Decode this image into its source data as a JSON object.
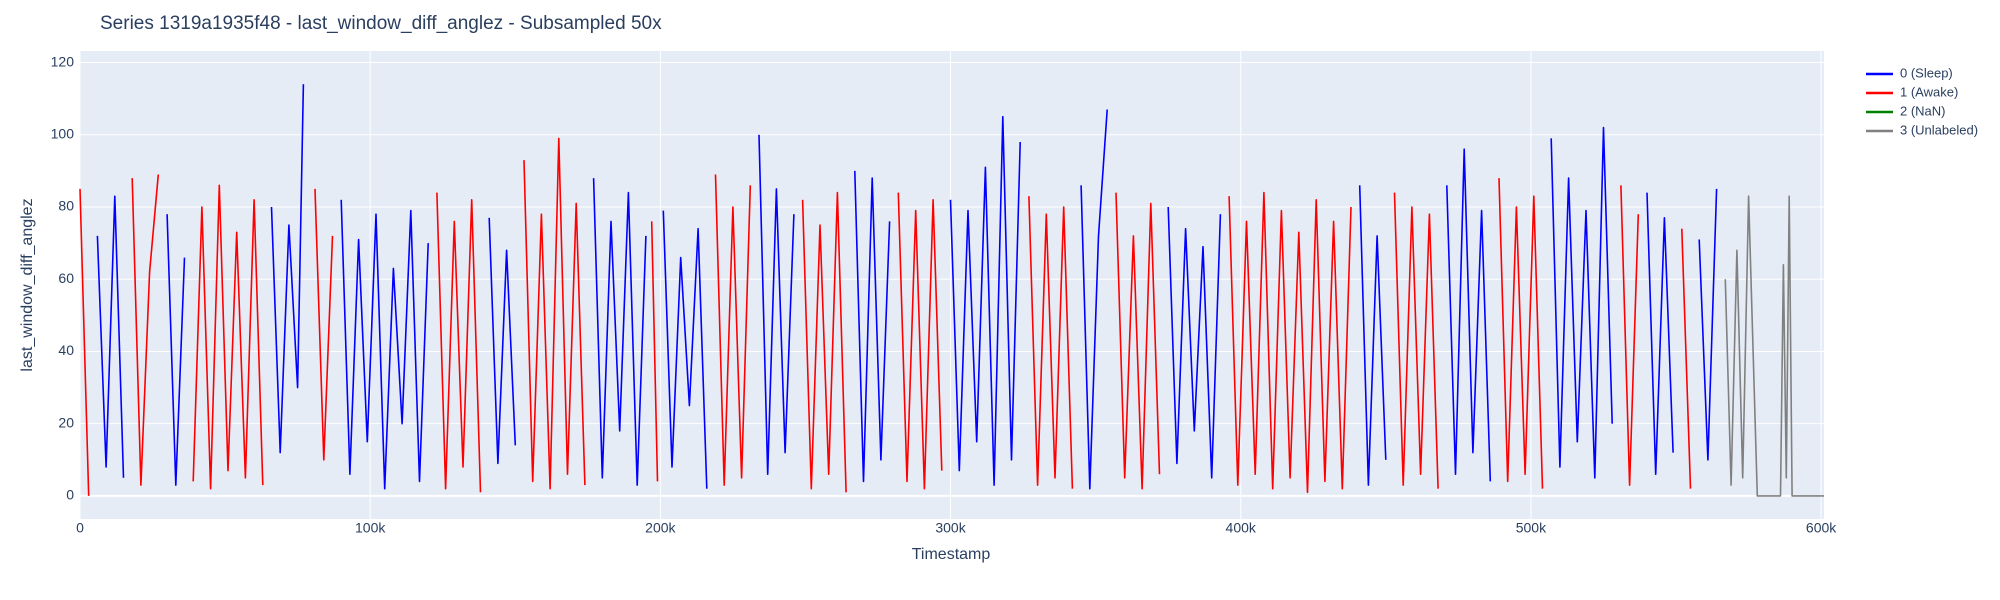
{
  "chart_data": {
    "type": "line",
    "title": "Series 1319a1935f48 - last_window_diff_anglez - Subsampled 50x",
    "x_label": "Timestamp",
    "y_label": "last_window_diff_anglez",
    "xlim": [
      0,
      601000
    ],
    "ylim": [
      -6.4,
      123.2
    ],
    "xticks": [
      0,
      {
        "value": 100000,
        "label": "100k"
      },
      {
        "value": 200000,
        "label": "200k"
      },
      {
        "value": 300000,
        "label": "300k"
      },
      {
        "value": 400000,
        "label": "400k"
      },
      {
        "value": 500000,
        "label": "500k"
      },
      {
        "value": 600000,
        "label": "600k"
      }
    ],
    "yticks": [
      0,
      20,
      40,
      60,
      80,
      100,
      120
    ],
    "grid": true,
    "legend": "right",
    "series": [
      {
        "name": "0 (Sleep)",
        "color": "#0000ff",
        "x": [
          6000,
          9000,
          12000,
          15000,
          20000,
          30000,
          33000,
          36000,
          50000,
          66000,
          69000,
          72000,
          75000,
          77000,
          85000,
          90000,
          93000,
          96000,
          99000,
          102000,
          105000,
          108000,
          111000,
          114000,
          117000,
          120000,
          130000,
          141000,
          144000,
          147000,
          150000,
          160000,
          177000,
          180000,
          183000,
          186000,
          189000,
          192000,
          195000,
          198000,
          201000,
          204000,
          207000,
          210000,
          213000,
          216000,
          225000,
          234000,
          237000,
          240000,
          243000,
          246000,
          255000,
          267000,
          270000,
          273000,
          276000,
          279000,
          290000,
          300000,
          303000,
          306000,
          309000,
          312000,
          315000,
          318000,
          321000,
          324000,
          335000,
          345000,
          348000,
          351000,
          354000,
          365000,
          375000,
          378000,
          381000,
          384000,
          387000,
          390000,
          393000,
          420000,
          441000,
          444000,
          447000,
          450000,
          460000,
          471000,
          474000,
          477000,
          480000,
          483000,
          486000,
          495000,
          507000,
          510000,
          513000,
          516000,
          519000,
          522000,
          525000,
          528000,
          535000,
          540000,
          543000,
          546000,
          549000,
          553000,
          558000,
          561000,
          564000
        ],
        "values": [
          72,
          8,
          83,
          5,
          null,
          78,
          3,
          66,
          null,
          80,
          12,
          75,
          30,
          114,
          null,
          82,
          6,
          71,
          15,
          78,
          2,
          63,
          20,
          79,
          4,
          70,
          null,
          77,
          9,
          68,
          14,
          null,
          88,
          5,
          76,
          18,
          84,
          3,
          72,
          null,
          79,
          8,
          66,
          25,
          74,
          2,
          null,
          100,
          6,
          85,
          12,
          78,
          null,
          90,
          4,
          88,
          10,
          76,
          null,
          82,
          7,
          79,
          15,
          91,
          3,
          105,
          10,
          98,
          null,
          86,
          2,
          72,
          107,
          null,
          80,
          9,
          74,
          18,
          69,
          5,
          78,
          null,
          86,
          3,
          72,
          10,
          null,
          86,
          6,
          96,
          12,
          79,
          4,
          null,
          99,
          8,
          88,
          15,
          79,
          5,
          102,
          20,
          null,
          84,
          6,
          77,
          12,
          null,
          71,
          10,
          85
        ]
      },
      {
        "name": "1 (Awake)",
        "color": "#ff0000",
        "x": [
          0,
          3000,
          10000,
          18000,
          21000,
          24000,
          27000,
          33000,
          39000,
          42000,
          45000,
          48000,
          51000,
          54000,
          57000,
          60000,
          63000,
          70000,
          81000,
          84000,
          87000,
          100000,
          123000,
          126000,
          129000,
          132000,
          135000,
          138000,
          145000,
          153000,
          156000,
          159000,
          162000,
          165000,
          168000,
          171000,
          174000,
          185000,
          197000,
          199000,
          210000,
          219000,
          222000,
          225000,
          228000,
          231000,
          240000,
          249000,
          252000,
          255000,
          258000,
          261000,
          264000,
          270000,
          282000,
          285000,
          288000,
          291000,
          294000,
          297000,
          310000,
          327000,
          330000,
          333000,
          336000,
          339000,
          342000,
          350000,
          357000,
          360000,
          363000,
          366000,
          369000,
          372000,
          385000,
          396000,
          399000,
          402000,
          405000,
          408000,
          411000,
          414000,
          417000,
          420000,
          423000,
          426000,
          429000,
          432000,
          435000,
          438000,
          445000,
          453000,
          456000,
          459000,
          462000,
          465000,
          468000,
          480000,
          489000,
          492000,
          495000,
          498000,
          501000,
          504000,
          520000,
          531000,
          534000,
          537000,
          545000,
          552000,
          555000
        ],
        "values": [
          85,
          0,
          null,
          88,
          3,
          62,
          89,
          null,
          4,
          80,
          2,
          86,
          7,
          73,
          5,
          82,
          3,
          null,
          85,
          10,
          72,
          null,
          84,
          2,
          76,
          8,
          82,
          1,
          null,
          93,
          4,
          78,
          2,
          99,
          6,
          81,
          3,
          null,
          76,
          4,
          null,
          89,
          3,
          80,
          5,
          86,
          null,
          82,
          2,
          75,
          6,
          84,
          1,
          null,
          84,
          4,
          79,
          2,
          82,
          7,
          null,
          83,
          3,
          78,
          5,
          80,
          2,
          null,
          84,
          5,
          72,
          2,
          81,
          6,
          null,
          83,
          3,
          76,
          6,
          84,
          2,
          79,
          5,
          73,
          1,
          82,
          4,
          76,
          2,
          80,
          null,
          84,
          3,
          80,
          6,
          78,
          2,
          null,
          88,
          4,
          80,
          6,
          83,
          2,
          null,
          86,
          3,
          78,
          null,
          74,
          2
        ]
      },
      {
        "name": "2 (NaN)",
        "color": "#008000",
        "x": [],
        "values": []
      },
      {
        "name": "3 (Unlabeled)",
        "color": "#808080",
        "x": [
          567000,
          569000,
          571000,
          573000,
          575000,
          578000,
          586000,
          587000,
          588000,
          589000,
          590000,
          601000
        ],
        "values": [
          60,
          3,
          68,
          5,
          83,
          0,
          0,
          64,
          5,
          83,
          0,
          0
        ]
      }
    ]
  }
}
